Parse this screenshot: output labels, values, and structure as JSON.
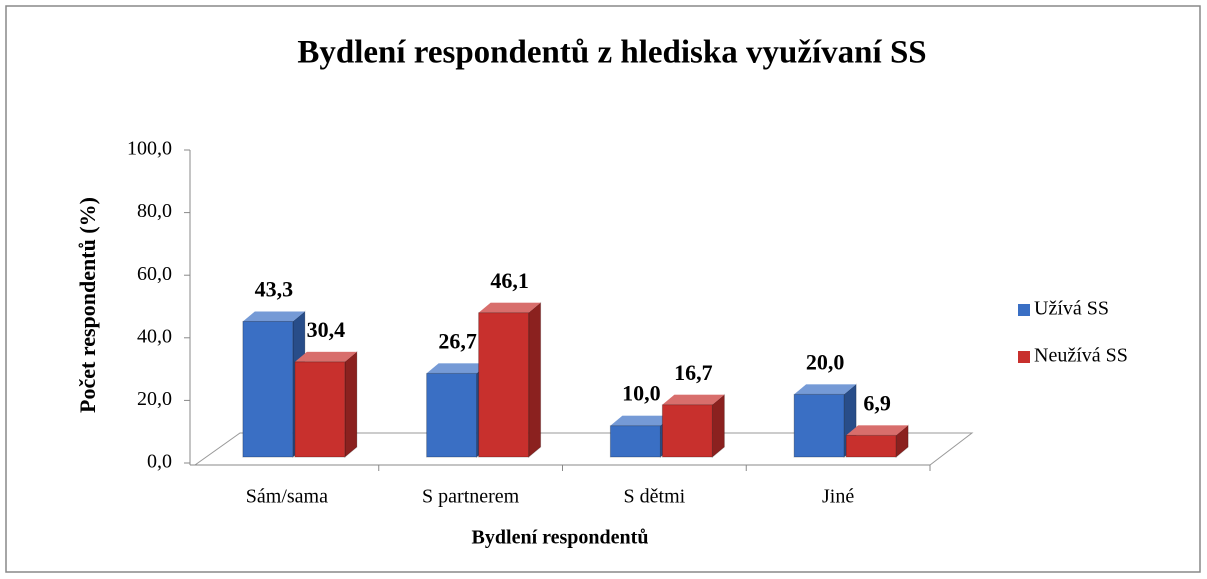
{
  "chart_data": {
    "type": "bar3d",
    "title": "Bydlení  respondentů z hlediska využívaní SS",
    "x_label": "Bydlení respondentů",
    "y_label": "Počet respondentů (%)",
    "categories": [
      "Sám/sama",
      "S partnerem",
      "S dětmi",
      "Jiné"
    ],
    "series": [
      {
        "name": "Užívá SS",
        "color": "#3a6fc4",
        "values": [
          43.3,
          26.7,
          10.0,
          20.0
        ],
        "value_labels": [
          "43,3",
          "26,7",
          "10,0",
          "20,0"
        ]
      },
      {
        "name": "Neužívá SS",
        "color": "#c8302d",
        "values": [
          30.4,
          46.1,
          16.7,
          6.9
        ],
        "value_labels": [
          "30,4",
          "46,1",
          "16,7",
          "6,9"
        ]
      }
    ],
    "ylim": [
      0,
      100
    ],
    "yticks": [
      {
        "value": 0,
        "label": "0,0"
      },
      {
        "value": 20,
        "label": "20,0"
      },
      {
        "value": 40,
        "label": "40,0"
      },
      {
        "value": 60,
        "label": "60,0"
      },
      {
        "value": 80,
        "label": "80,0"
      },
      {
        "value": 100,
        "label": "100,0"
      }
    ],
    "legend": "right"
  }
}
